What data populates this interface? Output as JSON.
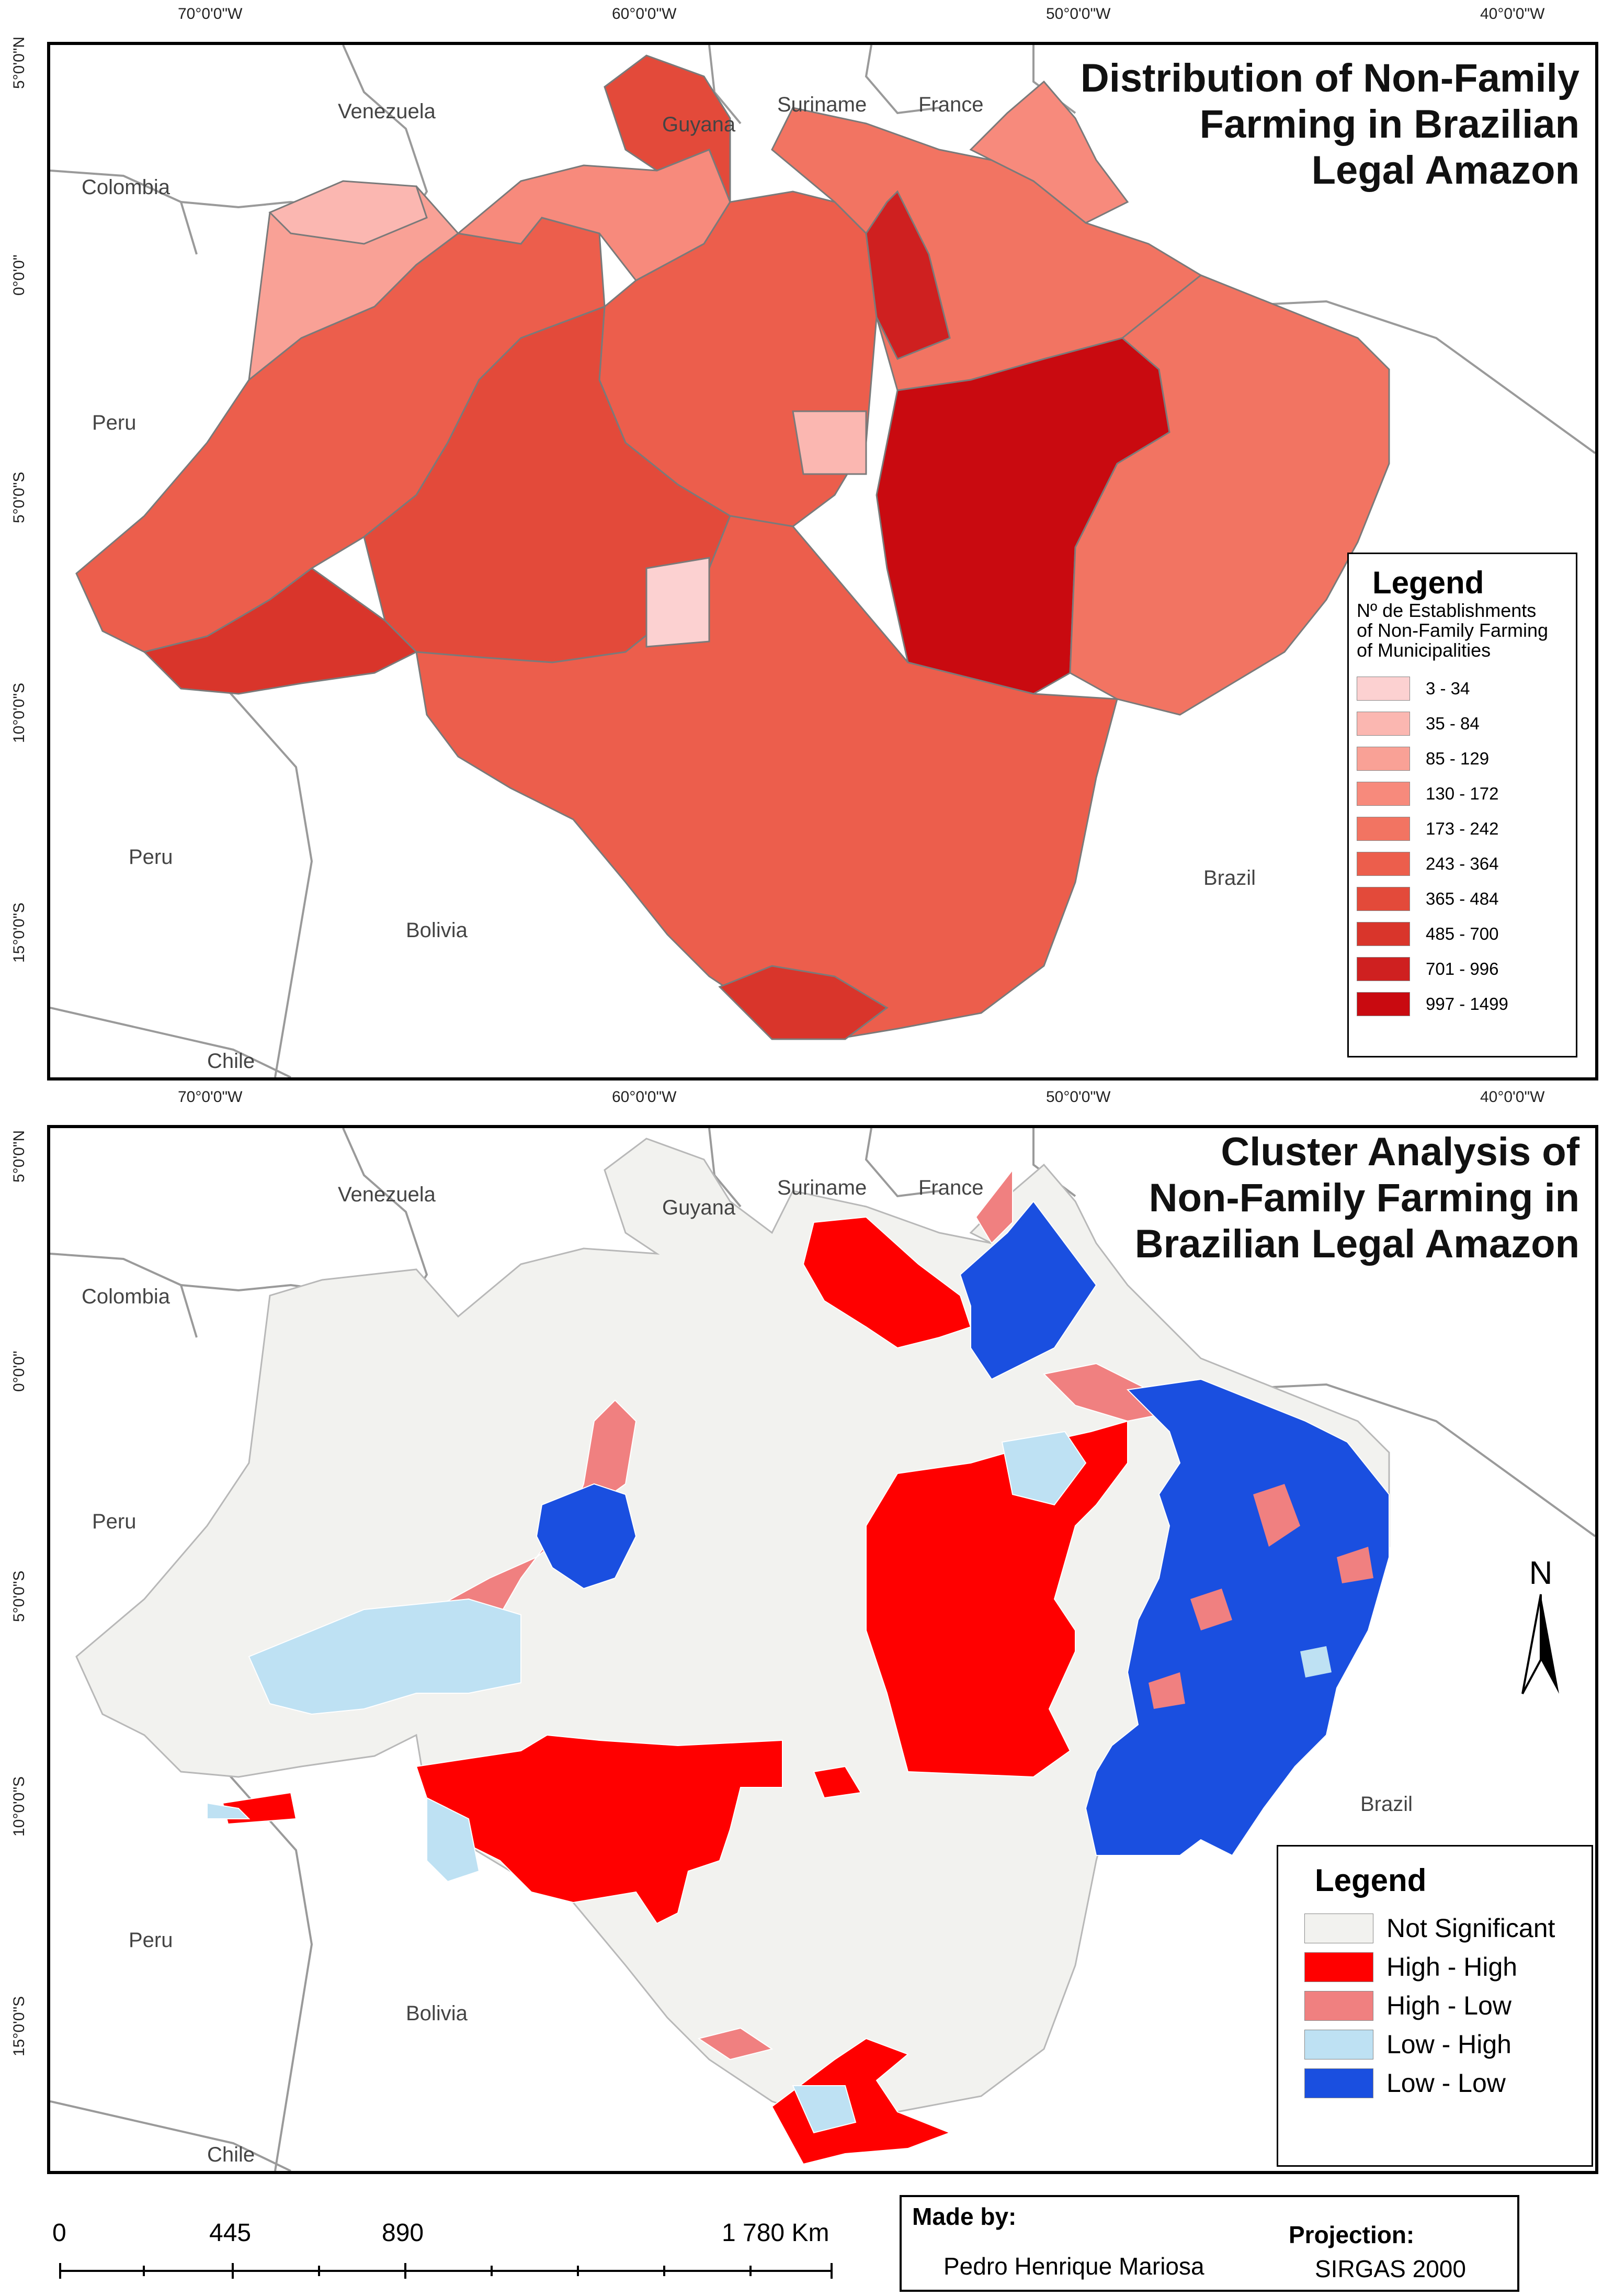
{
  "top_map": {
    "title_lines": [
      "Distribution of Non-Family",
      "Farming in Brazilian",
      "Legal Amazon"
    ],
    "legend": {
      "title": "Legend",
      "subtitle_lines": [
        "Nº de Establishments",
        "of Non-Family Farming",
        "of Municipalities"
      ],
      "classes": [
        {
          "label": "3 - 34",
          "color": "#fcd1d1"
        },
        {
          "label": "35 - 84",
          "color": "#fbb7b1"
        },
        {
          "label": "85 - 129",
          "color": "#f9a196"
        },
        {
          "label": "130 - 172",
          "color": "#f78a7c"
        },
        {
          "label": "173 - 242",
          "color": "#f27462"
        },
        {
          "label": "243 - 364",
          "color": "#ec5e4c"
        },
        {
          "label": "365 - 484",
          "color": "#e34a3a"
        },
        {
          "label": "485 - 700",
          "color": "#d9352b"
        },
        {
          "label": "701 - 996",
          "color": "#cf2020"
        },
        {
          "label": "997 - 1499",
          "color": "#c90a10"
        }
      ]
    },
    "countries": [
      "Venezuela",
      "Guyana",
      "Suriname",
      "France",
      "Colombia",
      "Peru",
      "Peru",
      "Bolivia",
      "Chile",
      "Brazil"
    ]
  },
  "bottom_map": {
    "title_lines": [
      "Cluster Analysis of",
      "Non-Family Farming in",
      "Brazilian Legal Amazon"
    ],
    "legend": {
      "title": "Legend",
      "classes": [
        {
          "label": "Not Significant",
          "color": "#f2f2ef"
        },
        {
          "label": "High - High",
          "color": "#ff0000"
        },
        {
          "label": "High - Low",
          "color": "#f08080"
        },
        {
          "label": "Low - High",
          "color": "#bee1f3"
        },
        {
          "label": "Low - Low",
          "color": "#1a4fe0"
        }
      ]
    },
    "countries": [
      "Venezuela",
      "Guyana",
      "Suriname",
      "France",
      "Colombia",
      "Peru",
      "Peru",
      "Bolivia",
      "Chile",
      "Brazil"
    ],
    "north_label": "N"
  },
  "graticule": {
    "longitudes": [
      "70°0'0\"W",
      "60°0'0\"W",
      "50°0'0\"W",
      "40°0'0\"W"
    ],
    "latitudes": [
      "5°0'0\"N",
      "0°0'0\"",
      "5°0'0\"S",
      "10°0'0\"S",
      "15°0'0\"S"
    ]
  },
  "scale_bar": {
    "labels": [
      "0",
      "445",
      "890",
      "1 780 Km"
    ]
  },
  "credits": {
    "made_by_label": "Made by:",
    "author": "Pedro Henrique Mariosa",
    "projection_label": "Projection:",
    "projection": "SIRGAS 2000"
  }
}
